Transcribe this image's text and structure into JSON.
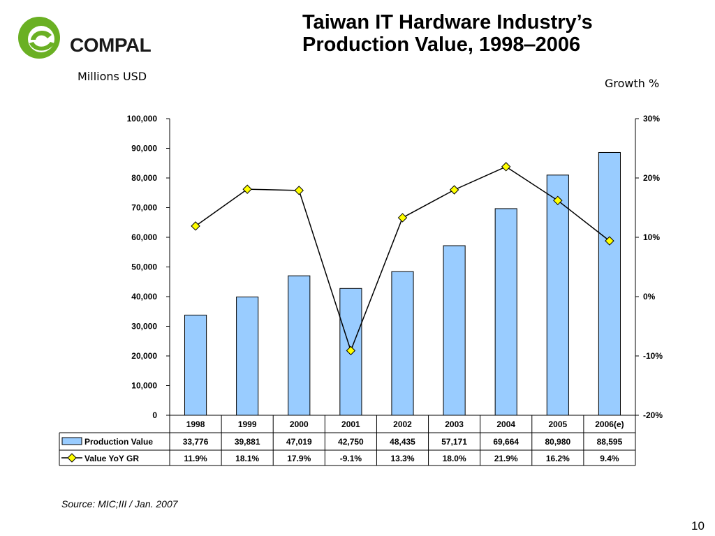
{
  "slide": {
    "title_line1": "Taiwan IT Hardware Industry’s",
    "title_line2": "Production Value, 1998‒2006",
    "brand": "COMPAL",
    "unit_left": "Millions USD",
    "unit_right": "Growth %",
    "source": "Source: MIC;III / Jan. 2007",
    "page_number": "10"
  },
  "colors": {
    "bar_fill": "#99ccff",
    "bar_stroke": "#000000",
    "marker_fill": "#ffff00",
    "line": "#000000",
    "logo_green": "#6ab023"
  },
  "chart_data": {
    "type": "bar",
    "categories": [
      "1998",
      "1999",
      "2000",
      "2001",
      "2002",
      "2003",
      "2004",
      "2005",
      "2006(e)"
    ],
    "series": [
      {
        "name": "Production Value",
        "type": "bar",
        "axis": "left",
        "values": [
          33776,
          39881,
          47019,
          42750,
          48435,
          57171,
          69664,
          80980,
          88595
        ],
        "labels": [
          "33,776",
          "39,881",
          "47,019",
          "42,750",
          "48,435",
          "57,171",
          "69,664",
          "80,980",
          "88,595"
        ]
      },
      {
        "name": "Value YoY GR",
        "type": "line",
        "axis": "right",
        "values": [
          11.9,
          18.1,
          17.9,
          -9.1,
          13.3,
          18.0,
          21.9,
          16.2,
          9.4
        ],
        "labels": [
          "11.9%",
          "18.1%",
          "17.9%",
          "-9.1%",
          "13.3%",
          "18.0%",
          "21.9%",
          "16.2%",
          "9.4%"
        ]
      }
    ],
    "y_left": {
      "range": [
        0,
        100000
      ],
      "ticks": [
        "0",
        "10,000",
        "20,000",
        "30,000",
        "40,000",
        "50,000",
        "60,000",
        "70,000",
        "80,000",
        "90,000",
        "100,000"
      ]
    },
    "y_right": {
      "range": [
        -20,
        30
      ],
      "ticks": [
        "-20%",
        "-10%",
        "0%",
        "10%",
        "20%",
        "30%"
      ]
    },
    "grid": false,
    "legend": "data table below chart"
  }
}
